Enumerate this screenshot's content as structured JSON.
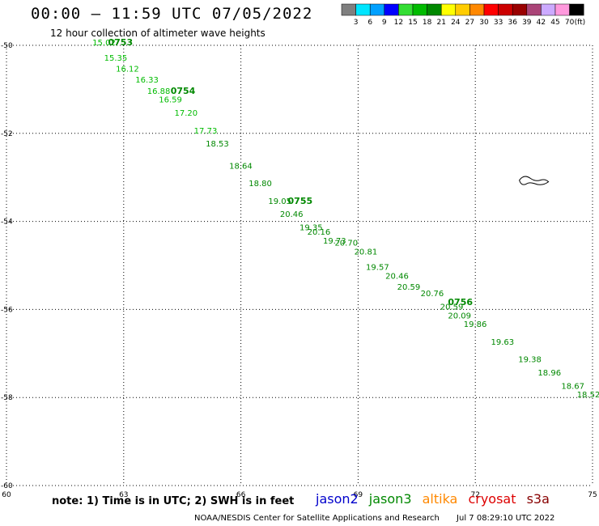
{
  "header": {
    "title": "00:00 – 11:59 UTC 07/05/2022",
    "subtitle": "12 hour collection of altimeter wave heights"
  },
  "legend": {
    "unit": "(ft)",
    "bins": [
      {
        "label": "3",
        "color": "#7f7f7f"
      },
      {
        "label": "6",
        "color": "#00e5ff"
      },
      {
        "label": "9",
        "color": "#00a0ff"
      },
      {
        "label": "12",
        "color": "#0000ff"
      },
      {
        "label": "15",
        "color": "#33dd33"
      },
      {
        "label": "18",
        "color": "#00bb00"
      },
      {
        "label": "21",
        "color": "#008800"
      },
      {
        "label": "24",
        "color": "#ffff00"
      },
      {
        "label": "27",
        "color": "#ffcc00"
      },
      {
        "label": "30",
        "color": "#ff8800"
      },
      {
        "label": "33",
        "color": "#ff0000"
      },
      {
        "label": "36",
        "color": "#cc0000"
      },
      {
        "label": "39",
        "color": "#990000"
      },
      {
        "label": "42",
        "color": "#aa4477"
      },
      {
        "label": "45",
        "color": "#ccaaff"
      },
      {
        "label": "70",
        "color": "#ff99dd"
      },
      {
        "label": "",
        "color": "#000000"
      }
    ]
  },
  "map": {
    "lon_range": [
      60,
      75
    ],
    "lat_range": [
      -60,
      -50
    ],
    "lon_ticks": [
      "60",
      "63",
      "66",
      "69",
      "72",
      "75"
    ],
    "lat_ticks": [
      "-50",
      "-52",
      "-54",
      "-56",
      "-58",
      "-60"
    ],
    "lon_tick_values": [
      60,
      63,
      66,
      69,
      72,
      75
    ],
    "lat_tick_values": [
      -50,
      -52,
      -54,
      -56,
      -58,
      -60
    ]
  },
  "track": {
    "time_labels": [
      {
        "text": "0753",
        "lon": 62.6,
        "lat": -50.0
      },
      {
        "text": "0754",
        "lon": 64.2,
        "lat": -51.1
      },
      {
        "text": "0755",
        "lon": 67.2,
        "lat": -53.6
      },
      {
        "text": "0756",
        "lon": 71.3,
        "lat": -55.9
      }
    ],
    "swh_labels": [
      {
        "text": "15.02",
        "lon": 62.2,
        "lat": -50.0
      },
      {
        "text": "15.35",
        "lon": 62.5,
        "lat": -50.35
      },
      {
        "text": "16.12",
        "lon": 62.8,
        "lat": -50.6
      },
      {
        "text": "16.33",
        "lon": 63.3,
        "lat": -50.85
      },
      {
        "text": "16.88",
        "lon": 63.6,
        "lat": -51.1
      },
      {
        "text": "16.59",
        "lon": 63.9,
        "lat": -51.3
      },
      {
        "text": "17.20",
        "lon": 64.3,
        "lat": -51.6
      },
      {
        "text": "17.73",
        "lon": 64.8,
        "lat": -52.0
      },
      {
        "text": "18.53",
        "lon": 65.1,
        "lat": -52.3
      },
      {
        "text": "18.64",
        "lon": 65.7,
        "lat": -52.8
      },
      {
        "text": "18.80",
        "lon": 66.2,
        "lat": -53.2
      },
      {
        "text": "19.05",
        "lon": 66.7,
        "lat": -53.6
      },
      {
        "text": "20.46",
        "lon": 67.0,
        "lat": -53.9
      },
      {
        "text": "19.35",
        "lon": 67.5,
        "lat": -54.2
      },
      {
        "text": "20.16",
        "lon": 67.7,
        "lat": -54.3
      },
      {
        "text": "19.73",
        "lon": 68.1,
        "lat": -54.5
      },
      {
        "text": "20.70",
        "lon": 68.4,
        "lat": -54.55
      },
      {
        "text": "20.81",
        "lon": 68.9,
        "lat": -54.75
      },
      {
        "text": "19.57",
        "lon": 69.2,
        "lat": -55.1
      },
      {
        "text": "20.46",
        "lon": 69.7,
        "lat": -55.3
      },
      {
        "text": "20.59",
        "lon": 70.0,
        "lat": -55.55
      },
      {
        "text": "20.76",
        "lon": 70.6,
        "lat": -55.7
      },
      {
        "text": "20.59",
        "lon": 71.1,
        "lat": -56.0
      },
      {
        "text": "20.09",
        "lon": 71.3,
        "lat": -56.2
      },
      {
        "text": "19.86",
        "lon": 71.7,
        "lat": -56.4
      },
      {
        "text": "19.63",
        "lon": 72.4,
        "lat": -56.8
      },
      {
        "text": "19.38",
        "lon": 73.1,
        "lat": -57.2
      },
      {
        "text": "18.96",
        "lon": 73.6,
        "lat": -57.5
      },
      {
        "text": "18.67",
        "lon": 74.2,
        "lat": -57.8
      },
      {
        "text": "18.52",
        "lon": 74.6,
        "lat": -58.0
      }
    ]
  },
  "footer": {
    "note": "note: 1) Time is in UTC; 2) SWH is in feet",
    "satellites": [
      {
        "name": "jason2",
        "color": "#0000cc"
      },
      {
        "name": "jason3",
        "color": "#008800"
      },
      {
        "name": "altika",
        "color": "#ff8800"
      },
      {
        "name": "cryosat",
        "color": "#dd0000"
      },
      {
        "name": "s3a",
        "color": "#880000"
      }
    ],
    "credit": "NOAA/NESDIS Center for Satellite Applications and Research",
    "timestamp": "Jul  7 08:29:10 UTC 2022"
  }
}
